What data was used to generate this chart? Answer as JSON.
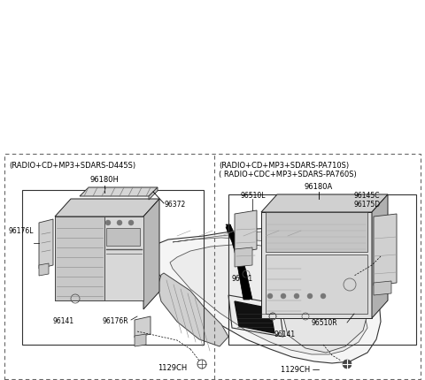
{
  "bg_color": "#ffffff",
  "fig_width": 4.8,
  "fig_height": 4.31,
  "dpi": 100,
  "left_box": {
    "title1": "(RADIO+CD+MP3+SDARS-D445S)",
    "part_number": "96180H",
    "label_96372": "96372",
    "label_96176L": "96176L",
    "label_96141": "96141",
    "label_96176R": "96176R",
    "label_1129CH": "1129CH"
  },
  "right_box": {
    "title1": "(RADIO+CD+MP3+SDARS-PA710S)",
    "title2": "( RADIO+CDC+MP3+SDARS-PA760S)",
    "part_number": "96180A",
    "label_96510L": "96510L",
    "label_96145C": "96145C",
    "label_96175D": "96175D",
    "label_96141a": "96141",
    "label_96510R": "96510R",
    "label_96141b": "96141",
    "label_1129CH": "1129CH"
  }
}
